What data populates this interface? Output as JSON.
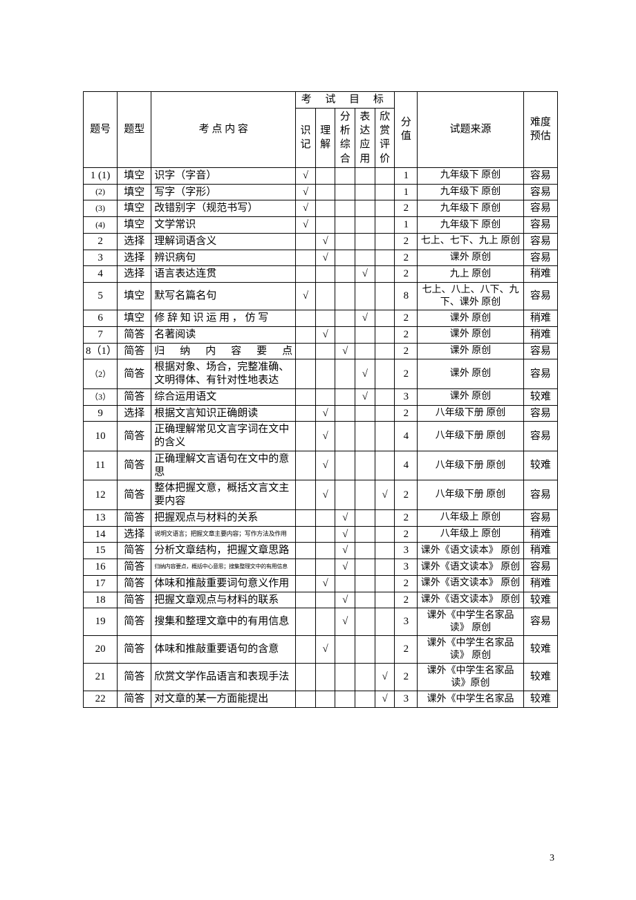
{
  "page_number": "3",
  "header": {
    "col_num": "题号",
    "col_type": "题型",
    "col_topic": "考 点 内 容",
    "col_exam_targets": "考 试 目 标",
    "t1": "识记",
    "t2": "理解",
    "t3": "分析综合",
    "t4": "表达应用",
    "t5": "欣赏评价",
    "col_score": "分值",
    "col_source": "试题来源",
    "col_diff": "难度预估"
  },
  "check": "√",
  "rows": [
    {
      "num": "1 (1)",
      "type": "填空",
      "topic": "识字（字音）",
      "t": [
        1,
        0,
        0,
        0,
        0
      ],
      "score": "1",
      "src": "九年级下 原创",
      "diff": "容易",
      "small": true
    },
    {
      "num": "(2)",
      "type": "填空",
      "topic": "写字（字形）",
      "t": [
        1,
        0,
        0,
        0,
        0
      ],
      "score": "1",
      "src": "九年级下 原创",
      "diff": "容易",
      "small": true
    },
    {
      "num": "(3)",
      "type": "填空",
      "topic": "改错别字（规范书写）",
      "t": [
        1,
        0,
        0,
        0,
        0
      ],
      "score": "2",
      "src": "九年级下 原创",
      "diff": "容易",
      "small": true
    },
    {
      "num": "(4)",
      "type": "填空",
      "topic": "文学常识",
      "t": [
        1,
        0,
        0,
        0,
        0
      ],
      "score": "1",
      "src": "九年级下 原创",
      "diff": "容易",
      "small": true
    },
    {
      "num": "2",
      "type": "选择",
      "topic": "理解词语含义",
      "t": [
        0,
        1,
        0,
        0,
        0
      ],
      "score": "2",
      "src": "七上、七下、九上 原创",
      "diff": "容易",
      "small": true
    },
    {
      "num": "3",
      "type": "选择",
      "topic": "辨识病句",
      "t": [
        0,
        1,
        0,
        0,
        0
      ],
      "score": "2",
      "src": "课外  原创",
      "diff": "容易",
      "small": true
    },
    {
      "num": "4",
      "type": "选择",
      "topic": "语言表达连贯",
      "t": [
        0,
        0,
        0,
        1,
        0
      ],
      "score": "2",
      "src": "九上 原创",
      "diff": "稍难",
      "small": true
    },
    {
      "num": "5",
      "type": "填空",
      "topic": "默写名篇名句",
      "t": [
        1,
        0,
        0,
        0,
        0
      ],
      "score": "8",
      "src": "七上、八上、八下、九下、课外 原创",
      "diff": "容易",
      "small": true
    },
    {
      "num": "6",
      "type": "填空",
      "topic": "修 辞 知 识 运 用 ， 仿 写",
      "t": [
        0,
        0,
        0,
        1,
        0
      ],
      "score": "2",
      "src": "课外 原创",
      "diff": "稍难",
      "small": true
    },
    {
      "num": "7",
      "type": "简答",
      "topic": "名著阅读",
      "t": [
        0,
        1,
        0,
        0,
        0
      ],
      "score": "2",
      "src": "课外 原创",
      "diff": "稍难",
      "small": true
    },
    {
      "num": "8（1）",
      "type": "简答",
      "topic": "归 纳 内 容 要 点",
      "t": [
        0,
        0,
        1,
        0,
        0
      ],
      "score": "2",
      "src": "课外 原创",
      "diff": "容易",
      "small": true,
      "just": true
    },
    {
      "num": "（2）",
      "type": "简答",
      "topic": "根据对象、场合，完整准确、文明得体、有针对性地表达",
      "t": [
        0,
        0,
        0,
        1,
        0
      ],
      "score": "2",
      "src": "课外 原创",
      "diff": "容易",
      "small": true
    },
    {
      "num": "（3）",
      "type": "简答",
      "topic": "综合运用语文",
      "t": [
        0,
        0,
        0,
        1,
        0
      ],
      "score": "3",
      "src": "课外 原创",
      "diff": "较难",
      "small": true
    },
    {
      "num": "9",
      "type": "选择",
      "topic": "根据文言知识正确朗读",
      "t": [
        0,
        1,
        0,
        0,
        0
      ],
      "score": "2",
      "src": "八年级下册 原创",
      "diff": "容易",
      "small": true
    },
    {
      "num": "10",
      "type": "简答",
      "topic": "正确理解常见文言字词在文中的含义",
      "t": [
        0,
        1,
        0,
        0,
        0
      ],
      "score": "4",
      "src": "八年级下册 原创",
      "diff": "容易",
      "small": true
    },
    {
      "num": "11",
      "type": "简答",
      "topic": "正确理解文言语句在文中的意思",
      "t": [
        0,
        1,
        0,
        0,
        0
      ],
      "score": "4",
      "src": "八年级下册 原创",
      "diff": "较难",
      "small": true
    },
    {
      "num": "12",
      "type": "简答",
      "topic": "整体把握文意，概括文言文主要内容",
      "t": [
        0,
        1,
        0,
        0,
        1
      ],
      "score": "2",
      "src": "八年级下册 原创",
      "diff": "容易",
      "small": true
    },
    {
      "num": "13",
      "type": "简答",
      "topic": "把握观点与材料的关系",
      "t": [
        0,
        0,
        1,
        0,
        0
      ],
      "score": "2",
      "src": "八年级上   原创",
      "diff": "容易",
      "small": true
    },
    {
      "num": "14",
      "type": "选择",
      "topic": "说明文语言；把握文章主要内容；写作方法及作用",
      "t": [
        0,
        0,
        1,
        0,
        0
      ],
      "score": "2",
      "src": "八年级上   原创",
      "diff": "稍难",
      "small": true,
      "tiny": true
    },
    {
      "num": "15",
      "type": "简答",
      "topic": "分析文章结构，把握文章思路",
      "t": [
        0,
        0,
        1,
        0,
        0
      ],
      "score": "3",
      "src": "课外《语文读本》 原创",
      "diff": "稍难",
      "small": true
    },
    {
      "num": "16",
      "type": "简答",
      "topic": "归纳内容要点，概括中心意思；搜集整理文中的有用信息",
      "t": [
        0,
        0,
        1,
        0,
        0
      ],
      "score": "3",
      "src": "课外《语文读本》 原创",
      "diff": "容易",
      "small": true,
      "tiny2": true
    },
    {
      "num": "17",
      "type": "简答",
      "topic": "体味和推敲重要词句意义作用",
      "t": [
        0,
        1,
        0,
        0,
        0
      ],
      "score": "2",
      "src": "课外《语文读本》 原创",
      "diff": "稍难",
      "small": true
    },
    {
      "num": "18",
      "type": "简答",
      "topic": "把握文章观点与材料的联系",
      "t": [
        0,
        0,
        1,
        0,
        0
      ],
      "score": "2",
      "src": "课外《语文读本》 原创",
      "diff": "较难",
      "small": true
    },
    {
      "num": "19",
      "type": "简答",
      "topic": "搜集和整理文章中的有用信息",
      "t": [
        0,
        0,
        1,
        0,
        0
      ],
      "score": "3",
      "src": "课外《中学生名家品读》  原创",
      "diff": "容易",
      "small": true
    },
    {
      "num": "20",
      "type": "简答",
      "topic": "体味和推敲重要语句的含意",
      "t": [
        0,
        1,
        0,
        0,
        0
      ],
      "score": "2",
      "src": "课外《中学生名家品读》  原创",
      "diff": "较难",
      "small": true
    },
    {
      "num": "21",
      "type": "简答",
      "topic": "欣赏文学作品语言和表现手法",
      "t": [
        0,
        0,
        0,
        0,
        1
      ],
      "score": "2",
      "src": "课外《中学生名家品读》原创",
      "diff": "较难",
      "small": true
    },
    {
      "num": "22",
      "type": "简答",
      "topic": "对文章的某一方面能提出",
      "t": [
        0,
        0,
        0,
        0,
        1
      ],
      "score": "3",
      "src": "课外《中学生名家品",
      "diff": "较难",
      "small": true,
      "cutoff": true
    }
  ]
}
